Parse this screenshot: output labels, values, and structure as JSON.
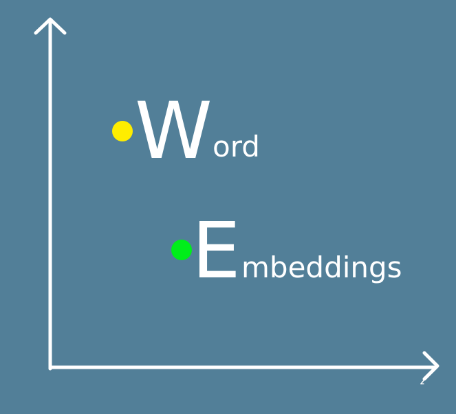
{
  "diagram": {
    "labels": {
      "word": {
        "initial": "W",
        "rest": "ord"
      },
      "embeddings": {
        "initial": "E",
        "rest": "mbeddings"
      }
    },
    "colors": {
      "background": "#527f98",
      "axes": "#ffffff",
      "text": "#ffffff",
      "word_dot": "#ffed00",
      "embeddings_dot": "#00ee1a"
    },
    "icons": {
      "y_axis_arrow": "arrow-up-icon",
      "x_axis_arrow": "arrow-right-icon",
      "pen_mark": "pen-icon"
    }
  }
}
